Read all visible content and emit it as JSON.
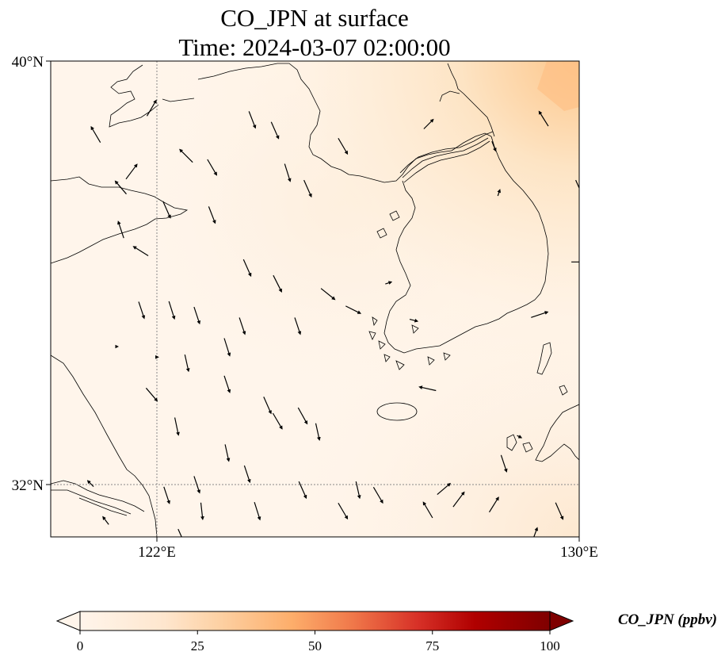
{
  "title": {
    "line1": "CO_JPN at surface",
    "line2": "Time: 2024-03-07 02:00:00"
  },
  "map": {
    "lon_range": [
      119.5,
      130
    ],
    "lat_range": [
      31,
      40
    ],
    "lon_ticks": [
      {
        "value": 122,
        "label": "122°E"
      },
      {
        "value": 130,
        "label": "130°E"
      }
    ],
    "lat_ticks": [
      {
        "value": 40,
        "label": "40°N"
      },
      {
        "value": 32,
        "label": "32°N"
      }
    ],
    "gridlines": {
      "lon": [
        122
      ],
      "lat": [
        32
      ]
    },
    "background_color": "#fff5eb",
    "wind_vectors": [
      [
        123.5,
        38.9,
        0.35,
        -0.9
      ],
      [
        123.95,
        38.7,
        0.4,
        -0.9
      ],
      [
        125.3,
        38.4,
        0.5,
        -0.85
      ],
      [
        122.7,
        38.0,
        0.5,
        -0.85
      ],
      [
        124.2,
        37.9,
        0.3,
        -0.95
      ],
      [
        124.6,
        37.6,
        0.4,
        -0.9
      ],
      [
        122.2,
        38.2,
        -0.7,
        0.7
      ],
      [
        121.5,
        39.1,
        0.5,
        0.85
      ],
      [
        120.4,
        38.6,
        -0.5,
        0.85
      ],
      [
        121.1,
        37.9,
        0.6,
        0.8
      ],
      [
        120.9,
        37.6,
        -0.6,
        0.7
      ],
      [
        121.8,
        37.2,
        0.4,
        -0.9
      ],
      [
        120.9,
        36.8,
        -0.3,
        0.9
      ],
      [
        121.3,
        36.4,
        -0.8,
        0.5
      ],
      [
        122.7,
        37.1,
        0.35,
        -0.9
      ],
      [
        123.4,
        36.1,
        0.4,
        -0.9
      ],
      [
        124.0,
        35.8,
        0.45,
        -0.9
      ],
      [
        125.0,
        35.6,
        0.75,
        -0.6
      ],
      [
        121.3,
        35.3,
        0.3,
        -0.9
      ],
      [
        121.9,
        35.3,
        0.3,
        -0.95
      ],
      [
        122.4,
        35.2,
        0.3,
        -0.9
      ],
      [
        123.3,
        35.0,
        0.3,
        -0.9
      ],
      [
        123.0,
        34.6,
        0.3,
        -0.95
      ],
      [
        124.4,
        35.0,
        0.3,
        -0.9
      ],
      [
        120.8,
        34.6,
        0.1,
        0.0
      ],
      [
        121.6,
        34.4,
        0.1,
        0.0
      ],
      [
        122.2,
        34.3,
        0.2,
        -0.9
      ],
      [
        123.0,
        33.9,
        0.3,
        -0.9
      ],
      [
        123.8,
        33.5,
        0.4,
        -0.9
      ],
      [
        124.0,
        33.2,
        0.5,
        -0.85
      ],
      [
        124.5,
        33.3,
        0.5,
        -0.9
      ],
      [
        124.8,
        33.0,
        0.2,
        -0.9
      ],
      [
        121.5,
        33.7,
        0.6,
        -0.7
      ],
      [
        122.0,
        33.1,
        0.2,
        -0.95
      ],
      [
        123.0,
        32.6,
        0.2,
        -0.9
      ],
      [
        123.4,
        32.2,
        0.3,
        -0.9
      ],
      [
        122.4,
        32.0,
        0.3,
        -0.9
      ],
      [
        121.8,
        31.8,
        0.3,
        -0.9
      ],
      [
        122.5,
        31.5,
        0.1,
        -0.9
      ],
      [
        123.6,
        31.5,
        0.3,
        -0.95
      ],
      [
        124.5,
        31.9,
        0.4,
        -0.9
      ],
      [
        125.3,
        31.5,
        0.5,
        -0.85
      ],
      [
        125.6,
        31.9,
        0.2,
        -0.9
      ],
      [
        126.0,
        31.8,
        0.5,
        -0.85
      ],
      [
        127.3,
        31.9,
        0.7,
        0.6
      ],
      [
        127.0,
        31.5,
        -0.5,
        0.85
      ],
      [
        127.6,
        31.7,
        0.6,
        0.8
      ],
      [
        128.3,
        31.6,
        0.5,
        0.8
      ],
      [
        129.6,
        31.5,
        0.4,
        -0.9
      ],
      [
        129.1,
        31.0,
        0.35,
        0.95
      ],
      [
        128.8,
        32.9,
        0.2,
        -0.1
      ],
      [
        128.5,
        32.4,
        0.3,
        -0.9
      ],
      [
        127.0,
        33.8,
        -0.9,
        0.2
      ],
      [
        125.5,
        35.3,
        0.8,
        -0.4
      ],
      [
        126.2,
        35.8,
        0.3,
        0.1
      ],
      [
        126.7,
        35.1,
        0.4,
        -0.1
      ],
      [
        129.2,
        35.2,
        0.9,
        0.3
      ],
      [
        127.0,
        38.8,
        0.5,
        0.5
      ],
      [
        128.4,
        37.5,
        0.1,
        0.3
      ],
      [
        129.3,
        38.9,
        -0.5,
        0.8
      ],
      [
        128.3,
        38.4,
        0.2,
        -0.5
      ],
      [
        130.0,
        37.6,
        0.4,
        -0.9
      ],
      [
        130.0,
        36.2,
        0.9,
        0.0
      ],
      [
        120.3,
        32.0,
        -0.3,
        0.3
      ],
      [
        120.6,
        31.3,
        -0.3,
        0.4
      ],
      [
        122.1,
        31.0,
        0.4,
        -0.9
      ]
    ]
  },
  "colorbar": {
    "label": "CO_JPN (ppbv)",
    "min": 0,
    "max": 100,
    "ticks": [
      {
        "value": 0,
        "label": "0"
      },
      {
        "value": 25,
        "label": "25"
      },
      {
        "value": 50,
        "label": "50"
      },
      {
        "value": 75,
        "label": "75"
      },
      {
        "value": 100,
        "label": "100"
      }
    ],
    "colors": [
      "#fff5eb",
      "#fdd49e",
      "#fdae6b",
      "#f16913",
      "#d94801",
      "#a50000",
      "#7f0000"
    ],
    "under_color": "#ffffff",
    "over_color": "#7f0000"
  }
}
